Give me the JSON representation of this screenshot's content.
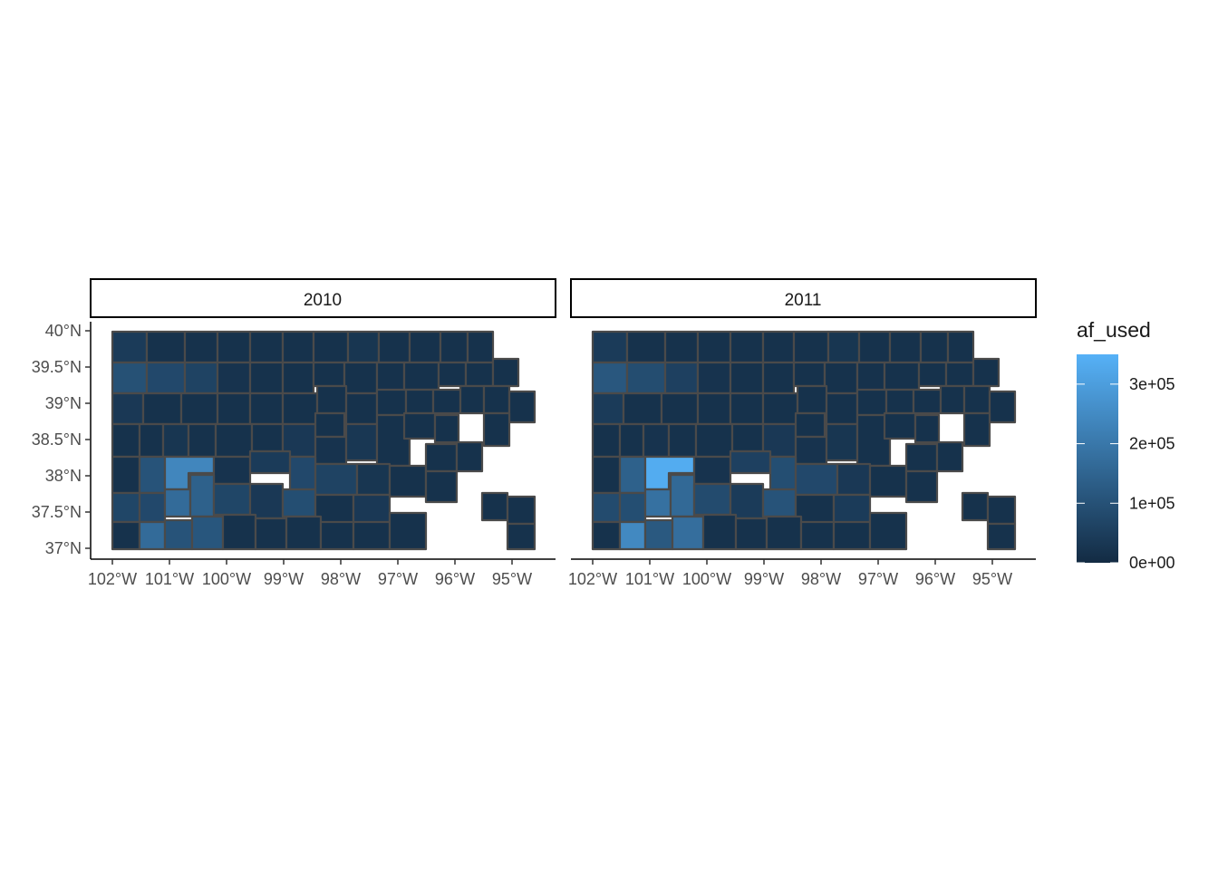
{
  "chart_data": {
    "type": "heatmap",
    "map": "county choropleth (facet_wrap by year)",
    "facets": [
      {
        "label": "2010",
        "max_county_value": 270000
      },
      {
        "label": "2011",
        "max_county_value": 350000
      }
    ],
    "x_ticks": [
      "102°W",
      "101°W",
      "100°W",
      "99°W",
      "98°W",
      "97°W",
      "96°W",
      "95°W"
    ],
    "x_tick_values": [
      -102,
      -101,
      -100,
      -99,
      -98,
      -97,
      -96,
      -95
    ],
    "y_ticks": [
      "40°N",
      "39.5°N",
      "39°N",
      "38.5°N",
      "38°N",
      "37.5°N",
      "37°N"
    ],
    "y_tick_values": [
      40,
      39.5,
      39,
      38.5,
      38,
      37.5,
      37
    ],
    "xlim": [
      -102.05,
      -94.6
    ],
    "ylim": [
      37,
      40
    ],
    "legend": {
      "title": "af_used",
      "labels": [
        "3e+05",
        "2e+05",
        "1e+05",
        "0e+00"
      ],
      "values": [
        300000,
        200000,
        100000,
        0
      ],
      "range": [
        0,
        350000
      ],
      "colors": {
        "low": "#132B43",
        "high": "#56B1F7"
      },
      "placement": "right"
    },
    "colors": {
      "county_border": "#4a4a4a",
      "missing": "#ffffff",
      "axis": "#000000"
    }
  }
}
